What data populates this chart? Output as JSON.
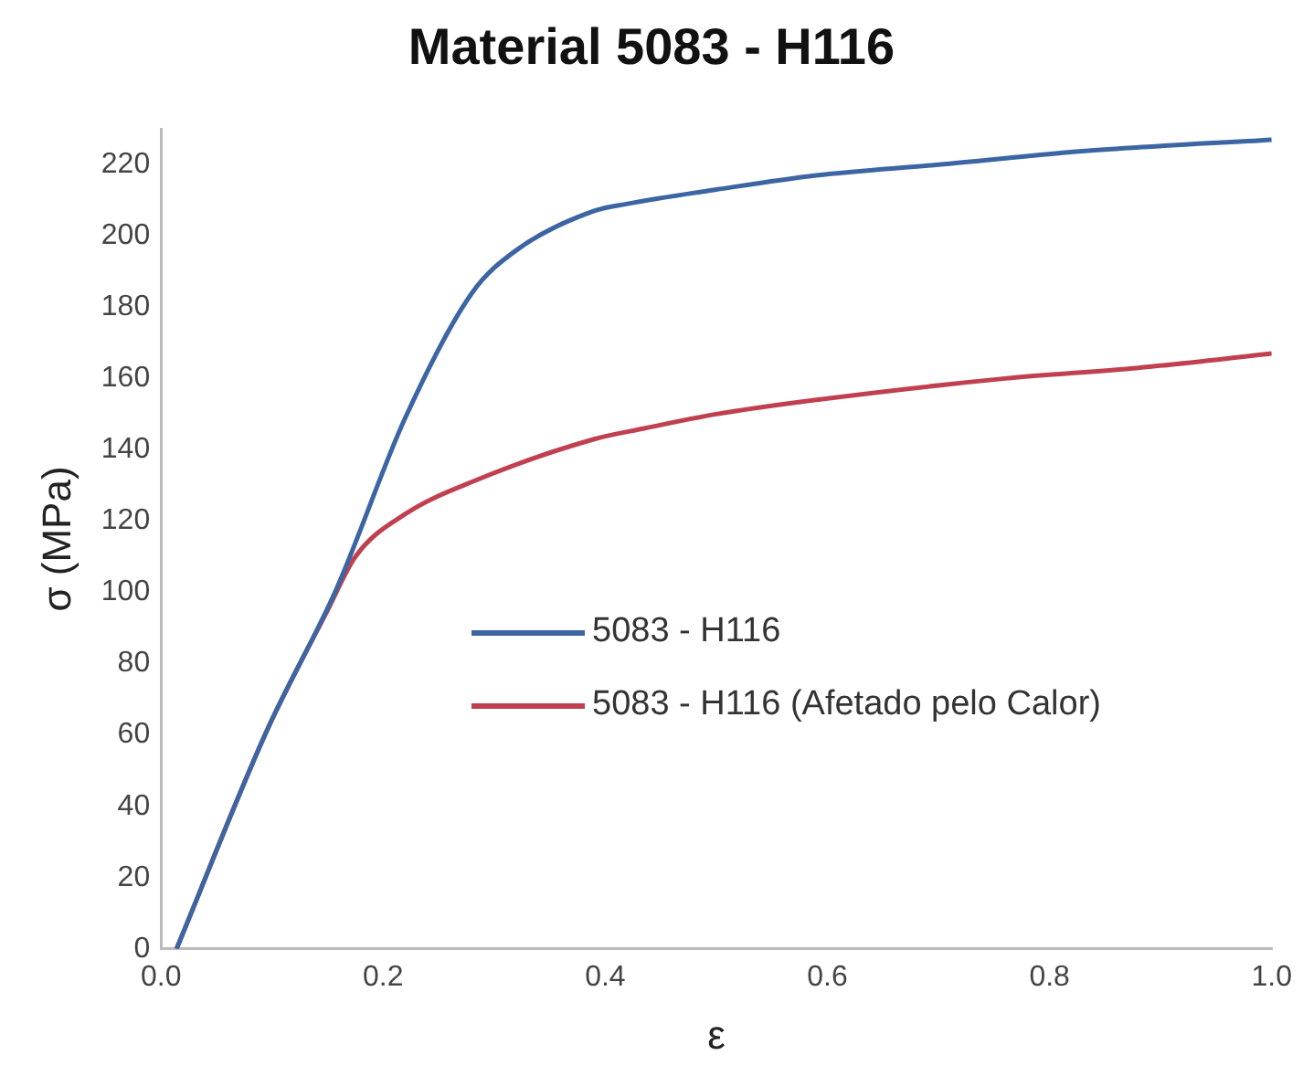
{
  "chart_data": {
    "type": "line",
    "title": "Material 5083 - H116",
    "xlabel": "ε",
    "ylabel": "σ (MPa)",
    "xlim": [
      0,
      1.0
    ],
    "xticks": [
      {
        "value": 0,
        "label": "0.0"
      },
      {
        "value": 0.2,
        "label": "0.2"
      },
      {
        "value": 0.4,
        "label": "0.4"
      },
      {
        "value": 0.6,
        "label": "0.6"
      },
      {
        "value": 0.8,
        "label": "0.8"
      },
      {
        "value": 1.0,
        "label": "1.0"
      }
    ],
    "ylim": [
      0,
      230
    ],
    "yticks": [
      0,
      20,
      40,
      60,
      80,
      100,
      120,
      140,
      160,
      180,
      200,
      220
    ],
    "grid": false,
    "legend": "right",
    "marker": "none",
    "line_style": "solid",
    "series": [
      {
        "name": "5083 - H116",
        "color": "#3c65a3",
        "x": [
          0.014,
          0.095,
          0.158,
          0.22,
          0.28,
          0.32,
          0.39,
          0.42,
          0.5,
          0.59,
          0.7,
          0.84,
          1.0
        ],
        "values": [
          0,
          61,
          101,
          149,
          184,
          196,
          207,
          209,
          213,
          217,
          220,
          224,
          227
        ]
      },
      {
        "name": "5083 - H116 (Afetado pelo Calor)",
        "color": "#c0404f",
        "x": [
          0.014,
          0.095,
          0.15,
          0.175,
          0.22,
          0.28,
          0.39,
          0.435,
          0.5,
          0.59,
          0.76,
          0.88,
          1.0
        ],
        "values": [
          0,
          61,
          95,
          110,
          122,
          131,
          143,
          146,
          150,
          154,
          160,
          163,
          167
        ]
      }
    ]
  }
}
